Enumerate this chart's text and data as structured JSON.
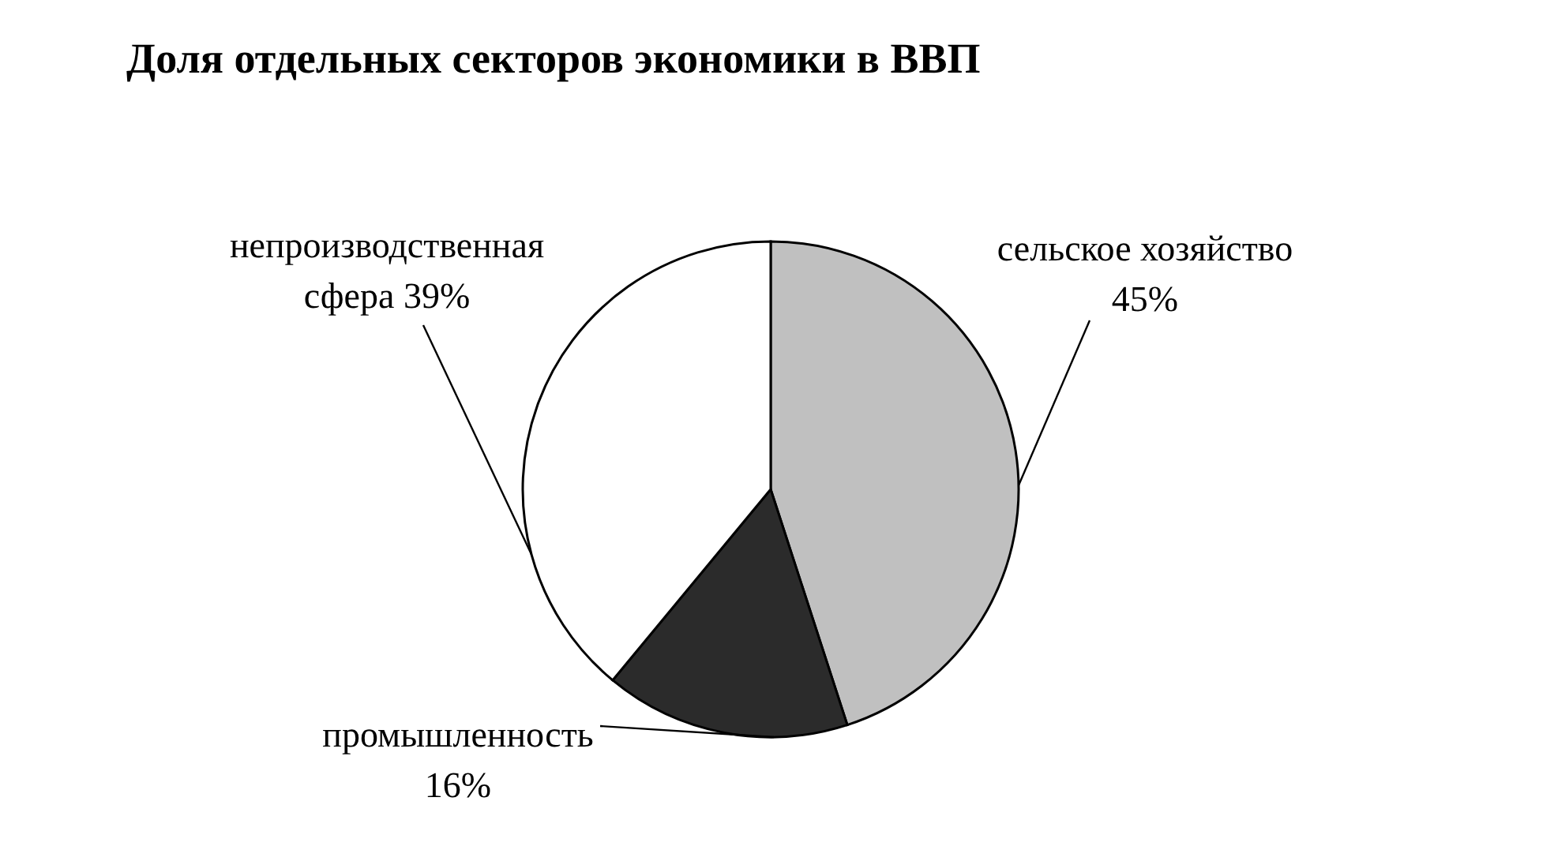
{
  "chart_data": {
    "type": "pie",
    "title": "Доля отдельных секторов экономики в ВВП",
    "categories": [
      "сельское хозяйство",
      "промышленность",
      "непроизводственная сфера"
    ],
    "values": [
      45,
      16,
      39
    ],
    "colors": [
      "#c0c0c0",
      "#2b2b2b",
      "#ffffff"
    ],
    "value_labels": [
      "45%",
      "16%",
      "39%"
    ]
  }
}
